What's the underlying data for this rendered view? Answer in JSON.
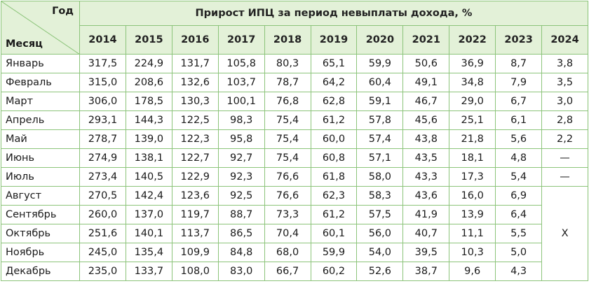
{
  "header": {
    "year_label": "Год",
    "month_label": "Месяц",
    "title": "Прирост ИПЦ за период невыплаты дохода, %"
  },
  "years": [
    "2014",
    "2015",
    "2016",
    "2017",
    "2018",
    "2019",
    "2020",
    "2021",
    "2022",
    "2023",
    "2024"
  ],
  "rows": [
    {
      "month": "Январь",
      "values": [
        "317,5",
        "224,9",
        "131,7",
        "105,8",
        "80,3",
        "65,1",
        "59,9",
        "50,6",
        "36,9",
        "8,7",
        "3,8"
      ]
    },
    {
      "month": "Февраль",
      "values": [
        "315,0",
        "208,6",
        "132,6",
        "103,7",
        "78,7",
        "64,2",
        "60,4",
        "49,1",
        "34,8",
        "7,9",
        "3,5"
      ]
    },
    {
      "month": "Март",
      "values": [
        "306,0",
        "178,5",
        "130,3",
        "100,1",
        "76,8",
        "62,8",
        "59,1",
        "46,7",
        "29,0",
        "6,7",
        "3,0"
      ]
    },
    {
      "month": "Апрель",
      "values": [
        "293,1",
        "144,3",
        "122,5",
        "98,3",
        "75,4",
        "61,2",
        "57,8",
        "45,6",
        "25,1",
        "6,1",
        "2,8"
      ]
    },
    {
      "month": "Май",
      "values": [
        "278,7",
        "139,0",
        "122,3",
        "95,8",
        "75,4",
        "60,0",
        "57,4",
        "43,8",
        "21,8",
        "5,6",
        "2,2"
      ]
    },
    {
      "month": "Июнь",
      "values": [
        "274,9",
        "138,1",
        "122,7",
        "92,7",
        "75,4",
        "60,8",
        "57,1",
        "43,5",
        "18,1",
        "4,8",
        "—"
      ]
    },
    {
      "month": "Июль",
      "values": [
        "273,4",
        "140,5",
        "122,9",
        "92,3",
        "76,6",
        "61,8",
        "58,0",
        "43,3",
        "17,3",
        "5,4",
        "—"
      ]
    },
    {
      "month": "Август",
      "values": [
        "270,5",
        "142,4",
        "123,6",
        "92,5",
        "76,6",
        "62,3",
        "58,3",
        "43,6",
        "16,0",
        "6,9"
      ]
    },
    {
      "month": "Сентябрь",
      "values": [
        "260,0",
        "137,0",
        "119,7",
        "88,7",
        "73,3",
        "61,2",
        "57,5",
        "41,9",
        "13,9",
        "6,4"
      ]
    },
    {
      "month": "Октябрь",
      "values": [
        "251,6",
        "140,1",
        "113,7",
        "86,5",
        "70,4",
        "60,1",
        "56,0",
        "40,7",
        "11,1",
        "5,5"
      ]
    },
    {
      "month": "Ноябрь",
      "values": [
        "245,0",
        "135,4",
        "109,9",
        "84,8",
        "68,0",
        "59,9",
        "54,0",
        "39,5",
        "10,3",
        "5,0"
      ]
    },
    {
      "month": "Декабрь",
      "values": [
        "235,0",
        "133,7",
        "108,0",
        "83,0",
        "66,7",
        "60,2",
        "52,6",
        "38,7",
        "9,6",
        "4,3"
      ]
    }
  ],
  "merged_cell": "X"
}
